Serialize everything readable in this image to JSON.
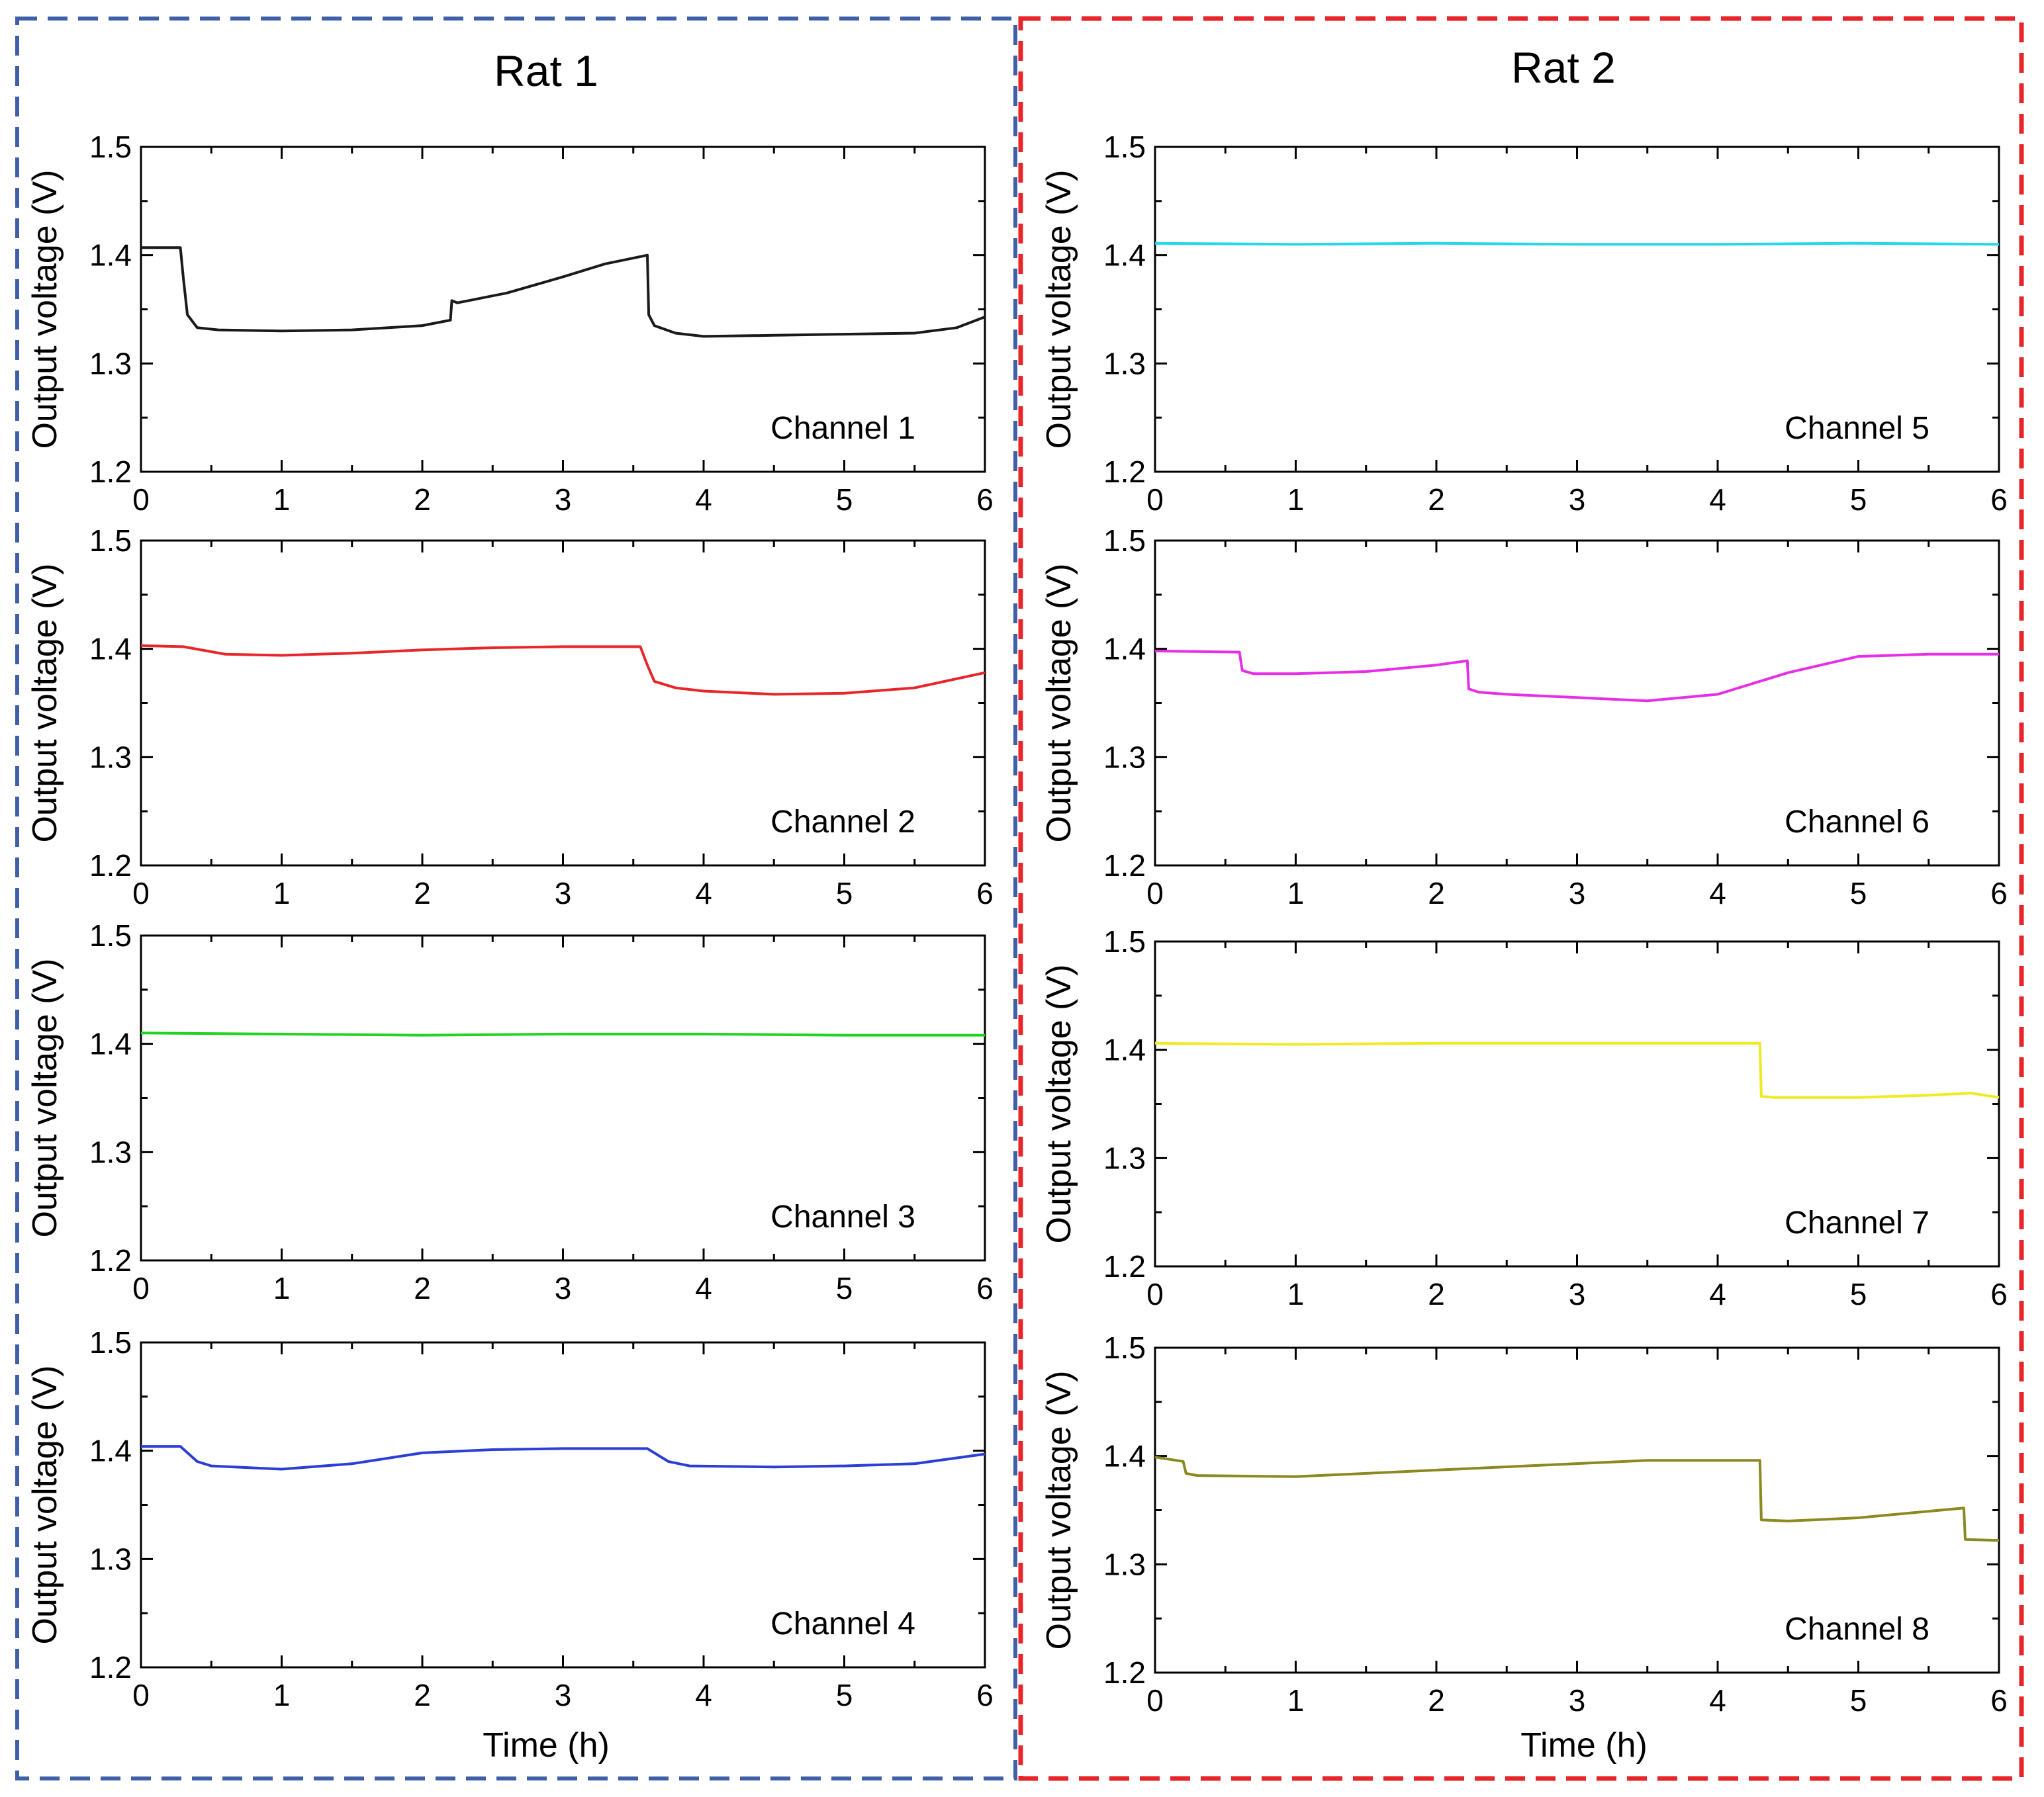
{
  "groups": [
    {
      "title": "Rat 1",
      "border_color": "#3f5fa8"
    },
    {
      "title": "Rat 2",
      "border_color": "#e8262a"
    }
  ],
  "chart_data": [
    {
      "type": "line",
      "group": "Rat 1",
      "label": "Channel 1",
      "color": "#1a1a1a",
      "xlabel": "Time (h)",
      "ylabel": "Output voltage (V)",
      "xlim": [
        0,
        6
      ],
      "ylim": [
        1.2,
        1.5
      ],
      "xticks": [
        0,
        1,
        2,
        3,
        4,
        5,
        6
      ],
      "yticks": [
        1.2,
        1.3,
        1.4,
        1.5
      ],
      "x": [
        0,
        0.28,
        0.3,
        0.33,
        0.4,
        0.55,
        1.0,
        1.5,
        2.0,
        2.2,
        2.21,
        2.25,
        2.6,
        3.0,
        3.3,
        3.6,
        3.61,
        3.65,
        3.8,
        4.0,
        4.5,
        5.0,
        5.5,
        5.8,
        6.0
      ],
      "y": [
        1.407,
        1.407,
        1.38,
        1.345,
        1.333,
        1.331,
        1.33,
        1.331,
        1.335,
        1.34,
        1.358,
        1.356,
        1.365,
        1.38,
        1.392,
        1.4,
        1.345,
        1.335,
        1.328,
        1.325,
        1.326,
        1.327,
        1.328,
        1.333,
        1.343
      ]
    },
    {
      "type": "line",
      "group": "Rat 1",
      "label": "Channel 2",
      "color": "#e8262a",
      "xlabel": "Time (h)",
      "ylabel": "Output voltage (V)",
      "xlim": [
        0,
        6
      ],
      "ylim": [
        1.2,
        1.5
      ],
      "xticks": [
        0,
        1,
        2,
        3,
        4,
        5,
        6
      ],
      "yticks": [
        1.2,
        1.3,
        1.4,
        1.5
      ],
      "x": [
        0,
        0.3,
        0.6,
        1.0,
        1.5,
        2.0,
        2.5,
        3.0,
        3.55,
        3.6,
        3.65,
        3.8,
        4.0,
        4.5,
        5.0,
        5.5,
        6.0
      ],
      "y": [
        1.403,
        1.402,
        1.395,
        1.394,
        1.396,
        1.399,
        1.401,
        1.402,
        1.402,
        1.385,
        1.37,
        1.364,
        1.361,
        1.358,
        1.359,
        1.364,
        1.378
      ]
    },
    {
      "type": "line",
      "group": "Rat 1",
      "label": "Channel 3",
      "color": "#22d322",
      "xlabel": "Time (h)",
      "ylabel": "Output voltage (V)",
      "xlim": [
        0,
        6
      ],
      "ylim": [
        1.2,
        1.5
      ],
      "xticks": [
        0,
        1,
        2,
        3,
        4,
        5,
        6
      ],
      "yticks": [
        1.2,
        1.3,
        1.4,
        1.5
      ],
      "x": [
        0,
        1,
        2,
        3,
        4,
        5,
        6
      ],
      "y": [
        1.41,
        1.409,
        1.408,
        1.409,
        1.409,
        1.408,
        1.408
      ]
    },
    {
      "type": "line",
      "group": "Rat 1",
      "label": "Channel 4",
      "color": "#2b3fd6",
      "xlabel": "Time (h)",
      "ylabel": "Output voltage (V)",
      "xlim": [
        0,
        6
      ],
      "ylim": [
        1.2,
        1.5
      ],
      "xticks": [
        0,
        1,
        2,
        3,
        4,
        5,
        6
      ],
      "yticks": [
        1.2,
        1.3,
        1.4,
        1.5
      ],
      "x": [
        0,
        0.28,
        0.4,
        0.5,
        1.0,
        1.5,
        2.0,
        2.5,
        3.0,
        3.6,
        3.75,
        3.9,
        4.5,
        5.0,
        5.5,
        6.0
      ],
      "y": [
        1.404,
        1.404,
        1.39,
        1.386,
        1.383,
        1.388,
        1.398,
        1.401,
        1.402,
        1.402,
        1.39,
        1.386,
        1.385,
        1.386,
        1.388,
        1.397
      ]
    },
    {
      "type": "line",
      "group": "Rat 2",
      "label": "Channel 5",
      "color": "#22d8ea",
      "xlabel": "Time (h)",
      "ylabel": "Output voltage (V)",
      "xlim": [
        0,
        6
      ],
      "ylim": [
        1.2,
        1.5
      ],
      "xticks": [
        0,
        1,
        2,
        3,
        4,
        5,
        6
      ],
      "yticks": [
        1.2,
        1.3,
        1.4,
        1.5
      ],
      "x": [
        0,
        1,
        2,
        3,
        4,
        5,
        6
      ],
      "y": [
        1.411,
        1.41,
        1.411,
        1.41,
        1.41,
        1.411,
        1.41
      ]
    },
    {
      "type": "line",
      "group": "Rat 2",
      "label": "Channel 6",
      "color": "#e62ee6",
      "xlabel": "Time (h)",
      "ylabel": "Output voltage (V)",
      "xlim": [
        0,
        6
      ],
      "ylim": [
        1.2,
        1.5
      ],
      "xticks": [
        0,
        1,
        2,
        3,
        4,
        5,
        6
      ],
      "yticks": [
        1.2,
        1.3,
        1.4,
        1.5
      ],
      "x": [
        0,
        0.6,
        0.62,
        0.7,
        1.0,
        1.5,
        2.0,
        2.22,
        2.23,
        2.3,
        2.5,
        3.0,
        3.5,
        4.0,
        4.5,
        5.0,
        5.5,
        6.0
      ],
      "y": [
        1.398,
        1.397,
        1.38,
        1.377,
        1.377,
        1.379,
        1.385,
        1.389,
        1.363,
        1.36,
        1.358,
        1.355,
        1.352,
        1.358,
        1.378,
        1.393,
        1.395,
        1.395
      ]
    },
    {
      "type": "line",
      "group": "Rat 2",
      "label": "Channel 7",
      "color": "#f0ea22",
      "xlabel": "Time (h)",
      "ylabel": "Output voltage (V)",
      "xlim": [
        0,
        6
      ],
      "ylim": [
        1.2,
        1.5
      ],
      "xticks": [
        0,
        1,
        2,
        3,
        4,
        5,
        6
      ],
      "yticks": [
        1.2,
        1.3,
        1.4,
        1.5
      ],
      "x": [
        0,
        1,
        2,
        3,
        4,
        4.3,
        4.31,
        4.4,
        5.0,
        5.5,
        5.8,
        6.0
      ],
      "y": [
        1.406,
        1.405,
        1.406,
        1.406,
        1.406,
        1.406,
        1.357,
        1.356,
        1.356,
        1.358,
        1.36,
        1.356
      ]
    },
    {
      "type": "line",
      "group": "Rat 2",
      "label": "Channel 8",
      "color": "#8a8a20",
      "xlabel": "Time (h)",
      "ylabel": "Output voltage (V)",
      "xlim": [
        0,
        6
      ],
      "ylim": [
        1.2,
        1.5
      ],
      "xticks": [
        0,
        1,
        2,
        3,
        4,
        5,
        6
      ],
      "yticks": [
        1.2,
        1.3,
        1.4,
        1.5
      ],
      "x": [
        0,
        0.2,
        0.22,
        0.3,
        1.0,
        2.0,
        3.0,
        3.5,
        4.3,
        4.31,
        4.5,
        5.0,
        5.5,
        5.75,
        5.76,
        6.0
      ],
      "y": [
        1.399,
        1.395,
        1.384,
        1.382,
        1.381,
        1.387,
        1.393,
        1.396,
        1.396,
        1.341,
        1.34,
        1.343,
        1.349,
        1.352,
        1.323,
        1.322
      ]
    }
  ]
}
